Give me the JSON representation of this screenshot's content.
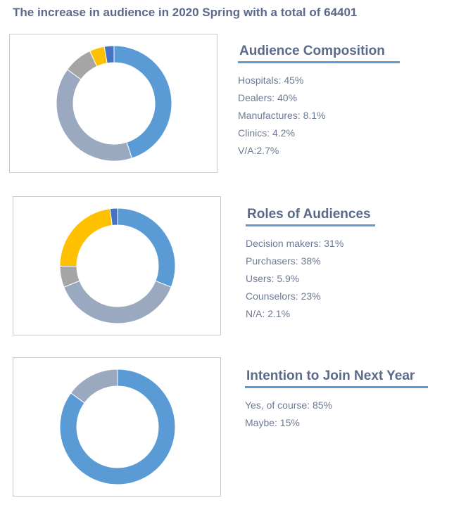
{
  "title": "The increase in audience in 2020 Spring with a total of 64401",
  "colors": {
    "blue": "#5b9bd5",
    "grayblue": "#9aa8c0",
    "gray": "#a5a5a5",
    "yellow": "#ffc000",
    "darkblue": "#4472c4"
  },
  "chart_data": [
    {
      "type": "pie",
      "variant": "donut",
      "title": "Audience Composition",
      "labels": [
        "Hospitals: 45%",
        "Dealers: 40%",
        "Manufactures: 8.1%",
        "Clinics: 4.2%",
        "V/A:2.7%"
      ],
      "values": [
        45,
        40,
        8.1,
        4.2,
        2.7
      ],
      "colors": [
        "#5b9bd5",
        "#9aa8c0",
        "#a5a5a5",
        "#ffc000",
        "#4472c4"
      ]
    },
    {
      "type": "pie",
      "variant": "donut",
      "title": "Roles of Audiences",
      "labels": [
        "Decision makers: 31%",
        "Purchasers: 38%",
        "Users: 5.9%",
        "Counselors: 23%",
        "N/A: 2.1%"
      ],
      "values": [
        31,
        38,
        5.9,
        23,
        2.1
      ],
      "colors": [
        "#5b9bd5",
        "#9aa8c0",
        "#a5a5a5",
        "#ffc000",
        "#4472c4"
      ]
    },
    {
      "type": "pie",
      "variant": "donut",
      "title": "Intention to Join Next Year",
      "labels": [
        "Yes, of course: 85%",
        "Maybe: 15%"
      ],
      "values": [
        85,
        15
      ],
      "colors": [
        "#5b9bd5",
        "#9aa8c0"
      ]
    }
  ]
}
